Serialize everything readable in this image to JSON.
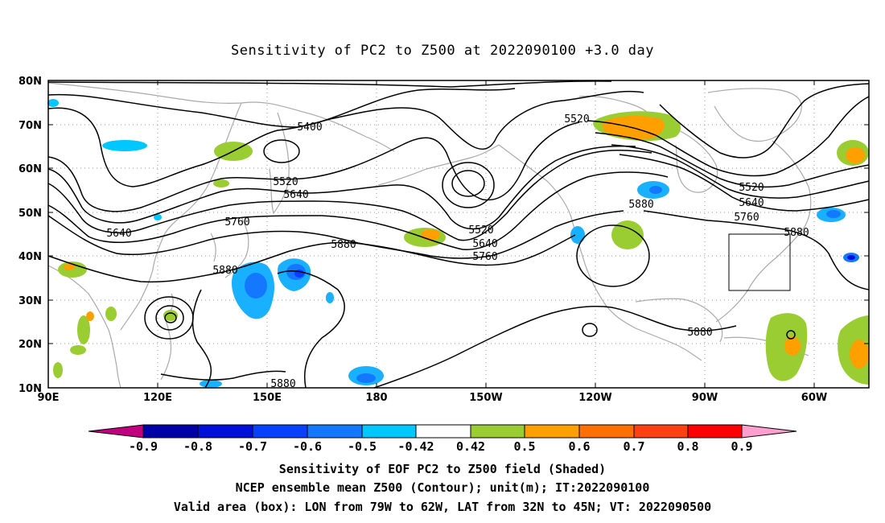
{
  "title": "Sensitivity of PC2 to Z500 at 2022090100 +3.0 day",
  "map": {
    "lon_labels": [
      "90E",
      "120E",
      "150E",
      "180",
      "150W",
      "120W",
      "90W",
      "60W"
    ],
    "lat_labels": [
      "80N",
      "70N",
      "60N",
      "50N",
      "40N",
      "30N",
      "20N",
      "10N"
    ],
    "lon_range": [
      "90E",
      "45W"
    ],
    "lat_range": [
      10,
      80
    ],
    "grid": true
  },
  "contour_labels": [
    "5400",
    "5520",
    "5640",
    "5640",
    "5760",
    "5880",
    "5880",
    "5520",
    "5640",
    "5760",
    "5520",
    "5880",
    "5520",
    "5640",
    "5760",
    "5880",
    "5880",
    "5880"
  ],
  "colorbar": {
    "labels": [
      "-0.9",
      "-0.8",
      "-0.7",
      "-0.6",
      "-0.5",
      "-0.42",
      "0.42",
      "0.5",
      "0.6",
      "0.7",
      "0.8",
      "0.9"
    ],
    "colors": [
      "#c0007f",
      "#0000a8",
      "#0010d8",
      "#0840ff",
      "#1478ff",
      "#18b0ff",
      "#00c8ff",
      "#ffffff",
      "#9acd32",
      "#ffa000",
      "#ff7000",
      "#ff4010",
      "#ff0000",
      "#ff9fcf"
    ]
  },
  "captions": [
    "Sensitivity of EOF PC2 to Z500 field (Shaded)",
    "NCEP ensemble mean Z500 (Contour); unit(m); IT:2022090100",
    "Valid area (box): LON from 79W to 62W, LAT from 32N to 45N; VT: 2022090500"
  ]
}
